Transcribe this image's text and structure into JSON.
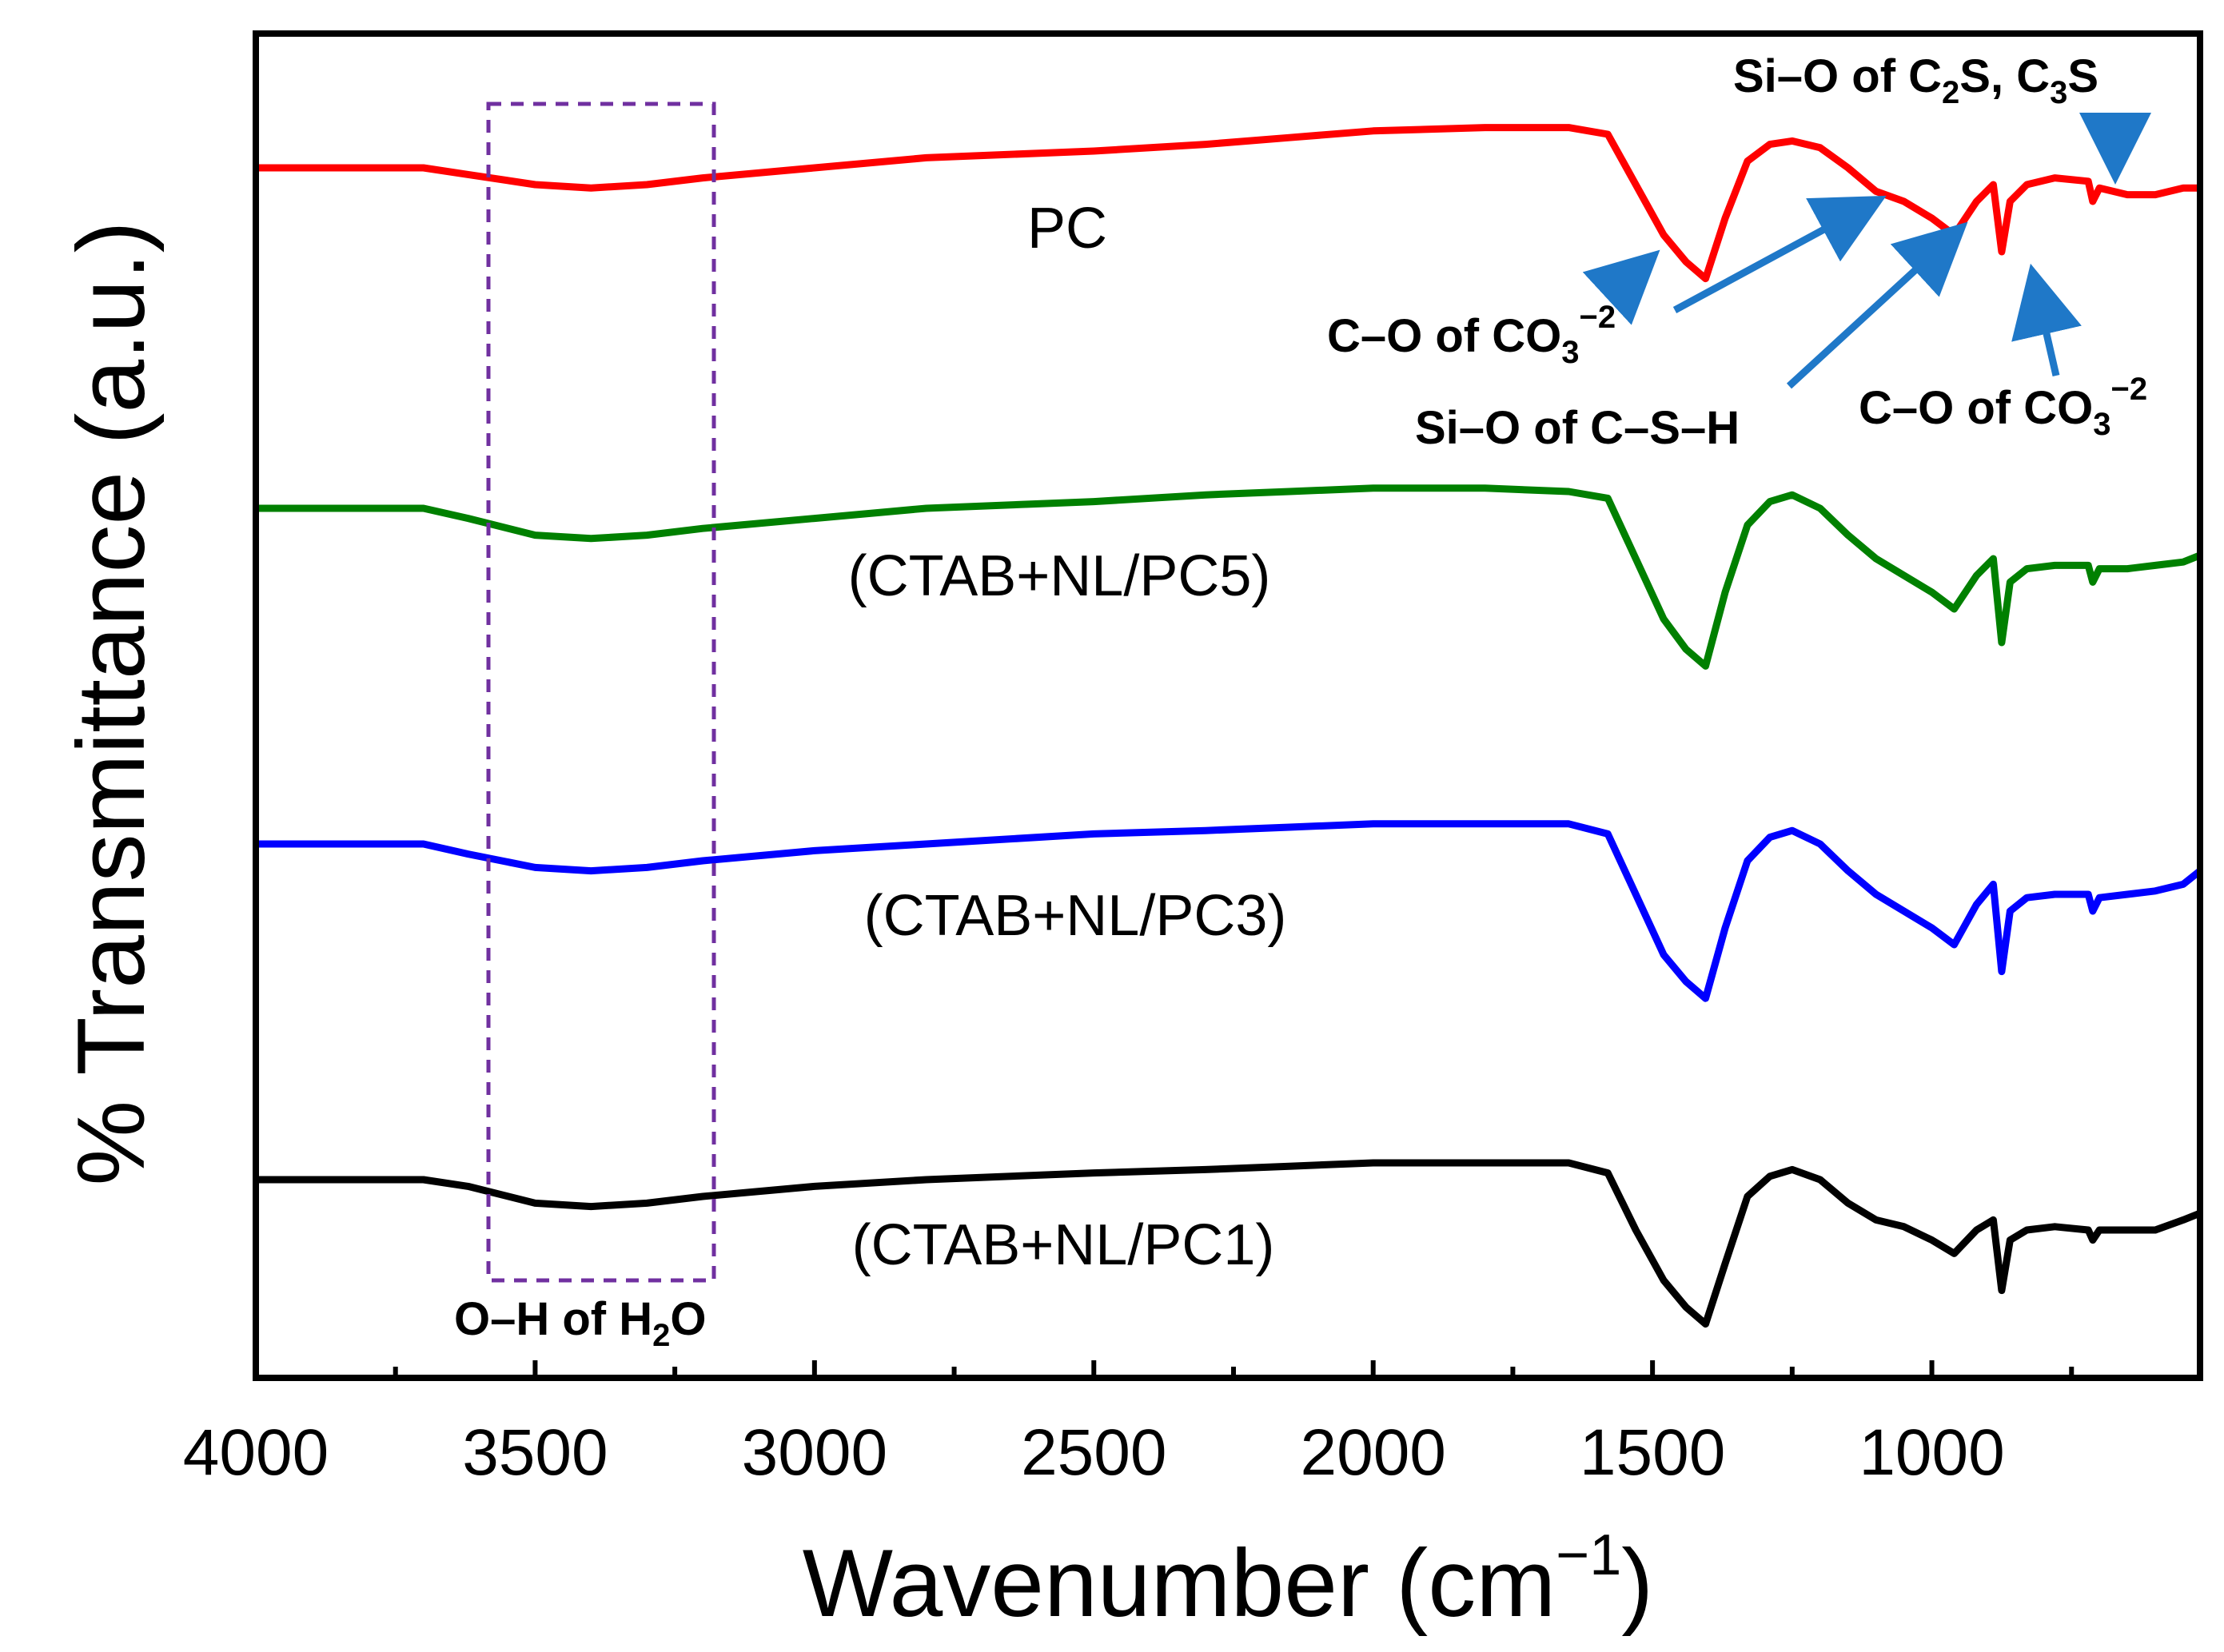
{
  "chart_data": {
    "type": "line",
    "title": "",
    "xlabel": "Wavenumber (cm",
    "xlabel_sup": "−1",
    "xlabel_close": ")",
    "ylabel": "% Transmittance (a.u.)",
    "xlim": [
      4000,
      520
    ],
    "x_ticks": [
      4000,
      3500,
      3000,
      2500,
      2000,
      1500,
      1000
    ],
    "x_tick_labels": [
      "4000",
      "3500",
      "3000",
      "2500",
      "2000",
      "1500",
      "1000"
    ],
    "y_ticks_shown": false,
    "grid": false,
    "series": [
      {
        "name": "PC",
        "color": "#ff0000",
        "offset": 3,
        "points": [
          [
            4000,
            0.0
          ],
          [
            3700,
            0.0
          ],
          [
            3620,
            -0.02
          ],
          [
            3500,
            -0.05
          ],
          [
            3400,
            -0.06
          ],
          [
            3300,
            -0.05
          ],
          [
            3200,
            -0.03
          ],
          [
            3000,
            0.0
          ],
          [
            2800,
            0.03
          ],
          [
            2500,
            0.05
          ],
          [
            2300,
            0.07
          ],
          [
            2150,
            0.09
          ],
          [
            2000,
            0.11
          ],
          [
            1800,
            0.12
          ],
          [
            1650,
            0.12
          ],
          [
            1580,
            0.1
          ],
          [
            1530,
            -0.05
          ],
          [
            1480,
            -0.2
          ],
          [
            1440,
            -0.28
          ],
          [
            1405,
            -0.33
          ],
          [
            1370,
            -0.15
          ],
          [
            1330,
            0.02
          ],
          [
            1290,
            0.07
          ],
          [
            1250,
            0.08
          ],
          [
            1200,
            0.06
          ],
          [
            1150,
            0.0
          ],
          [
            1100,
            -0.07
          ],
          [
            1050,
            -0.1
          ],
          [
            1000,
            -0.15
          ],
          [
            960,
            -0.2
          ],
          [
            920,
            -0.1
          ],
          [
            890,
            -0.05
          ],
          [
            875,
            -0.25
          ],
          [
            860,
            -0.1
          ],
          [
            830,
            -0.05
          ],
          [
            780,
            -0.03
          ],
          [
            720,
            -0.04
          ],
          [
            712,
            -0.1
          ],
          [
            700,
            -0.06
          ],
          [
            650,
            -0.08
          ],
          [
            600,
            -0.08
          ],
          [
            550,
            -0.06
          ],
          [
            520,
            -0.06
          ]
        ]
      },
      {
        "name": "(CTAB+NL/PC5)",
        "color": "#008000",
        "offset": 2,
        "points": [
          [
            4000,
            0.0
          ],
          [
            3700,
            0.0
          ],
          [
            3620,
            -0.03
          ],
          [
            3500,
            -0.08
          ],
          [
            3400,
            -0.09
          ],
          [
            3300,
            -0.08
          ],
          [
            3200,
            -0.06
          ],
          [
            3000,
            -0.03
          ],
          [
            2800,
            0.0
          ],
          [
            2500,
            0.02
          ],
          [
            2300,
            0.04
          ],
          [
            2150,
            0.05
          ],
          [
            2000,
            0.06
          ],
          [
            1800,
            0.06
          ],
          [
            1650,
            0.05
          ],
          [
            1580,
            0.03
          ],
          [
            1530,
            -0.15
          ],
          [
            1480,
            -0.33
          ],
          [
            1440,
            -0.42
          ],
          [
            1405,
            -0.47
          ],
          [
            1370,
            -0.25
          ],
          [
            1330,
            -0.05
          ],
          [
            1290,
            0.02
          ],
          [
            1250,
            0.04
          ],
          [
            1200,
            0.0
          ],
          [
            1150,
            -0.08
          ],
          [
            1100,
            -0.15
          ],
          [
            1050,
            -0.2
          ],
          [
            1000,
            -0.25
          ],
          [
            960,
            -0.3
          ],
          [
            920,
            -0.2
          ],
          [
            890,
            -0.15
          ],
          [
            875,
            -0.4
          ],
          [
            860,
            -0.22
          ],
          [
            830,
            -0.18
          ],
          [
            780,
            -0.17
          ],
          [
            720,
            -0.17
          ],
          [
            712,
            -0.22
          ],
          [
            700,
            -0.18
          ],
          [
            650,
            -0.18
          ],
          [
            600,
            -0.17
          ],
          [
            550,
            -0.16
          ],
          [
            520,
            -0.14
          ]
        ]
      },
      {
        "name": "(CTAB+NL/PC3)",
        "color": "#0000ff",
        "offset": 1,
        "points": [
          [
            4000,
            0.0
          ],
          [
            3700,
            0.0
          ],
          [
            3620,
            -0.03
          ],
          [
            3500,
            -0.07
          ],
          [
            3400,
            -0.08
          ],
          [
            3300,
            -0.07
          ],
          [
            3200,
            -0.05
          ],
          [
            3000,
            -0.02
          ],
          [
            2800,
            0.0
          ],
          [
            2500,
            0.03
          ],
          [
            2300,
            0.04
          ],
          [
            2150,
            0.05
          ],
          [
            2000,
            0.06
          ],
          [
            1800,
            0.06
          ],
          [
            1650,
            0.06
          ],
          [
            1580,
            0.03
          ],
          [
            1530,
            -0.15
          ],
          [
            1480,
            -0.33
          ],
          [
            1440,
            -0.41
          ],
          [
            1405,
            -0.46
          ],
          [
            1370,
            -0.25
          ],
          [
            1330,
            -0.05
          ],
          [
            1290,
            0.02
          ],
          [
            1250,
            0.04
          ],
          [
            1200,
            0.0
          ],
          [
            1150,
            -0.08
          ],
          [
            1100,
            -0.15
          ],
          [
            1050,
            -0.2
          ],
          [
            1000,
            -0.25
          ],
          [
            960,
            -0.3
          ],
          [
            920,
            -0.18
          ],
          [
            890,
            -0.12
          ],
          [
            875,
            -0.38
          ],
          [
            860,
            -0.2
          ],
          [
            830,
            -0.16
          ],
          [
            780,
            -0.15
          ],
          [
            720,
            -0.15
          ],
          [
            712,
            -0.2
          ],
          [
            700,
            -0.16
          ],
          [
            650,
            -0.15
          ],
          [
            600,
            -0.14
          ],
          [
            550,
            -0.12
          ],
          [
            520,
            -0.08
          ]
        ]
      },
      {
        "name": "(CTAB+NL/PC1)",
        "color": "#000000",
        "offset": 0,
        "points": [
          [
            4000,
            0.0
          ],
          [
            3700,
            0.0
          ],
          [
            3620,
            -0.02
          ],
          [
            3500,
            -0.07
          ],
          [
            3400,
            -0.08
          ],
          [
            3300,
            -0.07
          ],
          [
            3200,
            -0.05
          ],
          [
            3000,
            -0.02
          ],
          [
            2800,
            0.0
          ],
          [
            2500,
            0.02
          ],
          [
            2300,
            0.03
          ],
          [
            2150,
            0.04
          ],
          [
            2000,
            0.05
          ],
          [
            1800,
            0.05
          ],
          [
            1650,
            0.05
          ],
          [
            1580,
            0.02
          ],
          [
            1530,
            -0.15
          ],
          [
            1480,
            -0.3
          ],
          [
            1440,
            -0.38
          ],
          [
            1405,
            -0.43
          ],
          [
            1370,
            -0.25
          ],
          [
            1330,
            -0.05
          ],
          [
            1290,
            0.01
          ],
          [
            1250,
            0.03
          ],
          [
            1200,
            0.0
          ],
          [
            1150,
            -0.07
          ],
          [
            1100,
            -0.12
          ],
          [
            1050,
            -0.14
          ],
          [
            1000,
            -0.18
          ],
          [
            960,
            -0.22
          ],
          [
            920,
            -0.15
          ],
          [
            890,
            -0.12
          ],
          [
            875,
            -0.33
          ],
          [
            860,
            -0.18
          ],
          [
            830,
            -0.15
          ],
          [
            780,
            -0.14
          ],
          [
            720,
            -0.15
          ],
          [
            712,
            -0.18
          ],
          [
            700,
            -0.15
          ],
          [
            650,
            -0.15
          ],
          [
            600,
            -0.15
          ],
          [
            550,
            -0.12
          ],
          [
            520,
            -0.1
          ]
        ]
      }
    ],
    "annotations": {
      "oh_box": {
        "x_range": [
          3580,
          3185
        ],
        "label_main": "O–H of H",
        "label_sub": "2",
        "label_tail": "O"
      },
      "co_upper": {
        "main": "C–O of CO",
        "sub": "3",
        "sup": "−2",
        "targets_wavenumber": [
          1430,
          1140
        ]
      },
      "sio_csh": {
        "text": "Si–O of C–S–H",
        "target_wavenumber": 1000
      },
      "co_lower": {
        "main": "C–O of CO",
        "sub": "3",
        "sup": "−2",
        "target_wavenumber": 870
      },
      "sio_c2s": {
        "a": "Si–O of C",
        "sub1": "2",
        "b": "S, C",
        "sub2": "3",
        "c": "S",
        "target_wavenumber": 685
      }
    }
  }
}
